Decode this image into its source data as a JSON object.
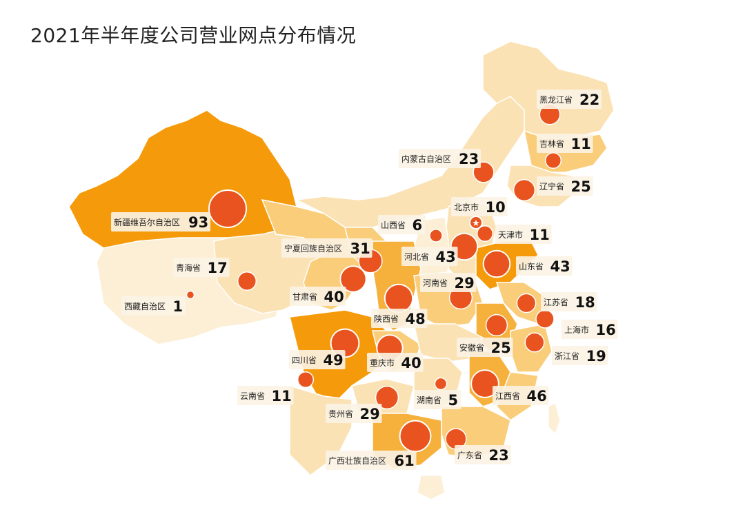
{
  "title": "2021年半年度公司营业网点分布情况",
  "colors": {
    "highlight": "#f59b0b",
    "strong": "#f6b13c",
    "medium": "#f9cd7a",
    "light": "#fbe2b4",
    "pale": "#fcefd5",
    "marker": "#e8531f",
    "capital_marker": "#e8531f"
  },
  "map_data": {
    "type": "choropleth-bubble",
    "capital_icon": "star-icon",
    "regions": [
      {
        "name": "黑龙江省",
        "count": 22
      },
      {
        "name": "吉林省",
        "count": 11
      },
      {
        "name": "内蒙古自治区",
        "count": 23
      },
      {
        "name": "辽宁省",
        "count": 25
      },
      {
        "name": "北京市",
        "count": 10
      },
      {
        "name": "新疆维吾尔自治区",
        "count": 93
      },
      {
        "name": "山西省",
        "count": 6
      },
      {
        "name": "天津市",
        "count": 11
      },
      {
        "name": "宁夏回族自治区",
        "count": 31
      },
      {
        "name": "河北省",
        "count": 43
      },
      {
        "name": "山东省",
        "count": 43
      },
      {
        "name": "青海省",
        "count": 17
      },
      {
        "name": "河南省",
        "count": 29
      },
      {
        "name": "甘肃省",
        "count": 40
      },
      {
        "name": "西藏自治区",
        "count": 1
      },
      {
        "name": "江苏省",
        "count": 18
      },
      {
        "name": "陕西省",
        "count": 48
      },
      {
        "name": "上海市",
        "count": 16
      },
      {
        "name": "安徽省",
        "count": 25
      },
      {
        "name": "浙江省",
        "count": 19
      },
      {
        "name": "四川省",
        "count": 49
      },
      {
        "name": "重庆市",
        "count": 40
      },
      {
        "name": "云南省",
        "count": 11
      },
      {
        "name": "江西省",
        "count": 46
      },
      {
        "name": "湖南省",
        "count": 5
      },
      {
        "name": "贵州省",
        "count": 29
      },
      {
        "name": "广东省",
        "count": 23
      },
      {
        "name": "广西壮族自治区",
        "count": 61
      }
    ]
  }
}
